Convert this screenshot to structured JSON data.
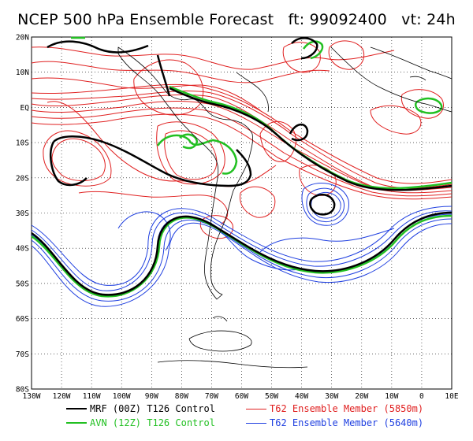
{
  "title": {
    "main": "NCEP 500 hPa Ensemble Forecast",
    "ft": "ft: 99092400",
    "vt": "vt: 24h"
  },
  "axes": {
    "lat_labels": [
      "20N",
      "10N",
      "EQ",
      "10S",
      "20S",
      "30S",
      "40S",
      "50S",
      "60S",
      "70S",
      "80S"
    ],
    "lon_labels": [
      "130W",
      "120W",
      "110W",
      "100W",
      "90W",
      "80W",
      "70W",
      "60W",
      "50W",
      "40W",
      "30W",
      "20W",
      "10W",
      "0",
      "10E"
    ]
  },
  "legend": [
    {
      "label": "MRF (00Z) T126 Control",
      "color": "#000000",
      "width": 2.5
    },
    {
      "label": "AVN (12Z) T126 Control",
      "color": "#22c022",
      "width": 2.5
    },
    {
      "label": "T62 Ensemble Member (5850m)",
      "color": "#e02020",
      "width": 1
    },
    {
      "label": "T62 Ensemble Member (5640m)",
      "color": "#2040e0",
      "width": 1
    }
  ],
  "colors": {
    "mrf": "#000000",
    "avn": "#22c022",
    "red_members": "#e02020",
    "blue_members": "#2040e0",
    "coast": "#000000",
    "grid": "#000000"
  }
}
